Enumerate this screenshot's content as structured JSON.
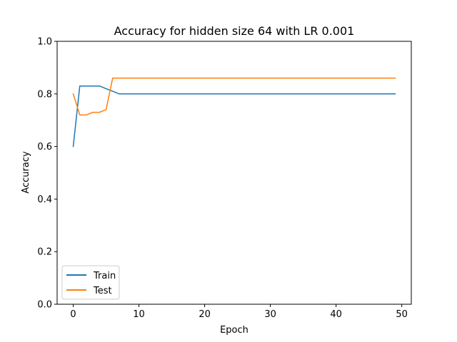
{
  "chart_data": {
    "type": "line",
    "title": "Accuracy for hidden size 64 with LR 0.001",
    "xlabel": "Epoch",
    "ylabel": "Accuracy",
    "xlim": [
      -2.45,
      51.45
    ],
    "ylim": [
      0.0,
      1.0
    ],
    "xticks": [
      0,
      10,
      20,
      30,
      40,
      50
    ],
    "yticks": [
      0.0,
      0.2,
      0.4,
      0.6,
      0.8,
      1.0
    ],
    "xtick_labels": [
      "0",
      "10",
      "20",
      "30",
      "40",
      "50"
    ],
    "ytick_labels": [
      "0.0",
      "0.2",
      "0.4",
      "0.6",
      "0.8",
      "1.0"
    ],
    "grid": false,
    "legend": "lower-left",
    "x": [
      0,
      1,
      2,
      3,
      4,
      5,
      6,
      7,
      8,
      9,
      10,
      11,
      12,
      13,
      14,
      15,
      16,
      17,
      18,
      19,
      20,
      21,
      22,
      23,
      24,
      25,
      26,
      27,
      28,
      29,
      30,
      31,
      32,
      33,
      34,
      35,
      36,
      37,
      38,
      39,
      40,
      41,
      42,
      43,
      44,
      45,
      46,
      47,
      48,
      49
    ],
    "series": [
      {
        "name": "Train",
        "color": "#1f77b4",
        "values": [
          0.6,
          0.83,
          0.83,
          0.83,
          0.83,
          0.82,
          0.81,
          0.8,
          0.8,
          0.8,
          0.8,
          0.8,
          0.8,
          0.8,
          0.8,
          0.8,
          0.8,
          0.8,
          0.8,
          0.8,
          0.8,
          0.8,
          0.8,
          0.8,
          0.8,
          0.8,
          0.8,
          0.8,
          0.8,
          0.8,
          0.8,
          0.8,
          0.8,
          0.8,
          0.8,
          0.8,
          0.8,
          0.8,
          0.8,
          0.8,
          0.8,
          0.8,
          0.8,
          0.8,
          0.8,
          0.8,
          0.8,
          0.8,
          0.8,
          0.8
        ]
      },
      {
        "name": "Test",
        "color": "#ff7f0e",
        "values": [
          0.8,
          0.72,
          0.72,
          0.73,
          0.73,
          0.74,
          0.86,
          0.86,
          0.86,
          0.86,
          0.86,
          0.86,
          0.86,
          0.86,
          0.86,
          0.86,
          0.86,
          0.86,
          0.86,
          0.86,
          0.86,
          0.86,
          0.86,
          0.86,
          0.86,
          0.86,
          0.86,
          0.86,
          0.86,
          0.86,
          0.86,
          0.86,
          0.86,
          0.86,
          0.86,
          0.86,
          0.86,
          0.86,
          0.86,
          0.86,
          0.86,
          0.86,
          0.86,
          0.86,
          0.86,
          0.86,
          0.86,
          0.86,
          0.86,
          0.86
        ]
      }
    ]
  }
}
